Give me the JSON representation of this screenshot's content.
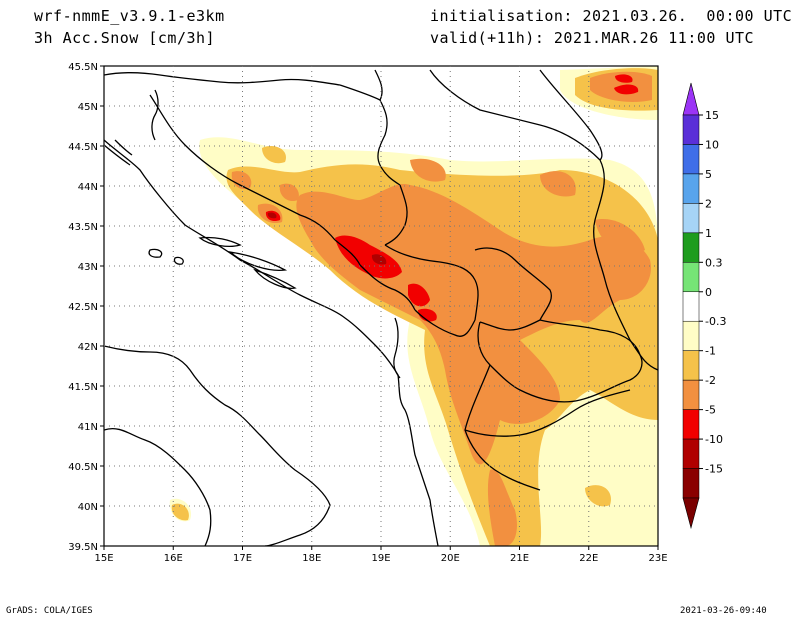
{
  "header": {
    "model": "wrf-nmmE_v3.9.1-e3km",
    "field": "3h Acc.Snow [cm/3h]",
    "init": "initialisation: 2021.03.26.  00:00 UTC",
    "valid": "valid(+11h): 2021.MAR.26 11:00 UTC"
  },
  "footer": {
    "left": "GrADS: COLA/IGES",
    "right": "2021-03-26-09:40"
  },
  "axes": {
    "lon_labels": [
      "15E",
      "16E",
      "17E",
      "18E",
      "19E",
      "20E",
      "21E",
      "22E",
      "23E"
    ],
    "lat_labels": [
      "45.5N",
      "45N",
      "44.5N",
      "44N",
      "43.5N",
      "43N",
      "42.5N",
      "42N",
      "41.5N",
      "41N",
      "40.5N",
      "40N",
      "39.5N"
    ]
  },
  "colorbar": {
    "labels": [
      "15",
      "10",
      "5",
      "2",
      "1",
      "0.3",
      "0",
      "-0.3",
      "-1",
      "-2",
      "-5",
      "-10",
      "-15"
    ],
    "colors": [
      "#5a2fd8",
      "#3f6ee8",
      "#58a4ec",
      "#a6d4f6",
      "#1e9c1e",
      "#76e476",
      "#ffffff",
      "#fffdc6",
      "#f5c24a",
      "#f29040",
      "#f20000",
      "#b00000",
      "#8a0000"
    ],
    "top_arrow": "#9b34f6",
    "bottom_arrow": "#7a0000"
  },
  "legend_colors": {
    "light": "#fffdc6",
    "yellow": "#f5c24a",
    "orange": "#f29040",
    "red": "#f20000",
    "darkred": "#b00000"
  }
}
